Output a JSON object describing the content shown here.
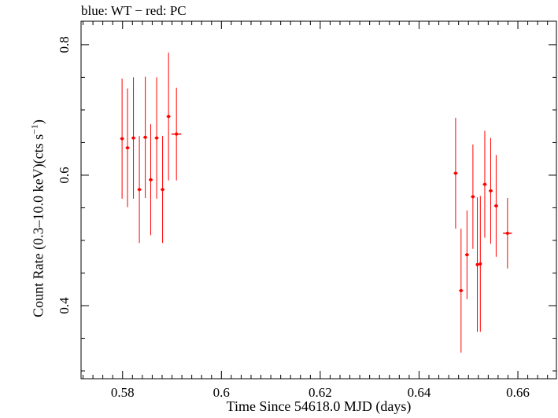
{
  "chart_data": {
    "type": "scatter",
    "title": "blue: WT − red: PC",
    "xlabel": "Time Since 54618.0 MJD (days)",
    "ylabel": {
      "prefix": "Count Rate (0.3–10.0 keV)(cts s",
      "sup": "−1",
      "suffix": ")"
    },
    "xlim": [
      0.5716,
      0.6678
    ],
    "ylim": [
      0.288,
      0.836
    ],
    "xticks": [
      0.58,
      0.6,
      0.62,
      0.64,
      0.66
    ],
    "xtick_labels": [
      "0.58",
      "0.6",
      "0.62",
      "0.64",
      "0.66"
    ],
    "yticks": [
      0.4,
      0.6,
      0.8
    ],
    "ytick_labels": [
      "0.4",
      "0.6",
      "0.8"
    ],
    "colors": {
      "PC": "#ff0000",
      "WT": "#0000ff"
    },
    "series": [
      {
        "name": "PC",
        "color": "#ff0000",
        "points": [
          {
            "x": 0.5799,
            "xerr": 0.0004,
            "y": 0.656,
            "yerr": 0.092
          },
          {
            "x": 0.581,
            "xerr": 0.0004,
            "y": 0.642,
            "yerr": 0.091
          },
          {
            "x": 0.5822,
            "xerr": 0.0004,
            "y": 0.657,
            "yerr": 0.093
          },
          {
            "x": 0.5834,
            "xerr": 0.0004,
            "y": 0.578,
            "yerr": 0.082
          },
          {
            "x": 0.5846,
            "xerr": 0.0004,
            "y": 0.658,
            "yerr": 0.093
          },
          {
            "x": 0.5857,
            "xerr": 0.0004,
            "y": 0.593,
            "yerr": 0.085
          },
          {
            "x": 0.5869,
            "xerr": 0.0004,
            "y": 0.657,
            "yerr": 0.093
          },
          {
            "x": 0.5881,
            "xerr": 0.0004,
            "y": 0.578,
            "yerr": 0.082
          },
          {
            "x": 0.5893,
            "xerr": 0.0004,
            "y": 0.69,
            "yerr": 0.098
          },
          {
            "x": 0.5909,
            "xerr": 0.001,
            "y": 0.663,
            "yerr": 0.071
          },
          {
            "x": 0.6474,
            "xerr": 0.0004,
            "y": 0.603,
            "yerr": 0.085
          },
          {
            "x": 0.6485,
            "xerr": 0.0004,
            "y": 0.423,
            "yerr": 0.095
          },
          {
            "x": 0.6497,
            "xerr": 0.0004,
            "y": 0.478,
            "yerr": 0.068
          },
          {
            "x": 0.6509,
            "xerr": 0.0004,
            "y": 0.567,
            "yerr": 0.08
          },
          {
            "x": 0.6518,
            "xerr": 0.0003,
            "y": 0.463,
            "yerr": 0.103
          },
          {
            "x": 0.6524,
            "xerr": 0.0003,
            "y": 0.464,
            "yerr": 0.104
          },
          {
            "x": 0.6533,
            "xerr": 0.0004,
            "y": 0.586,
            "yerr": 0.082
          },
          {
            "x": 0.6545,
            "xerr": 0.0004,
            "y": 0.576,
            "yerr": 0.081
          },
          {
            "x": 0.6556,
            "xerr": 0.0004,
            "y": 0.553,
            "yerr": 0.078
          },
          {
            "x": 0.6579,
            "xerr": 0.0009,
            "y": 0.511,
            "yerr": 0.054
          }
        ]
      }
    ]
  }
}
